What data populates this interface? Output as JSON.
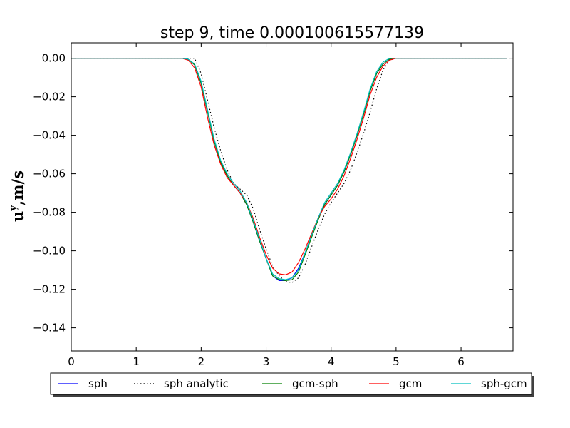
{
  "chart_data": {
    "type": "line",
    "title": "step 9, time 0.000100615577139",
    "xlabel": "",
    "ylabel": {
      "main": "u",
      "sup": "y",
      "rest": ",m/s"
    },
    "xlim": [
      0,
      6.8
    ],
    "ylim": [
      -0.152,
      0.008
    ],
    "xticks": [
      0,
      1,
      2,
      3,
      4,
      5,
      6
    ],
    "xtick_labels": [
      "0",
      "1",
      "2",
      "3",
      "4",
      "5",
      "6"
    ],
    "yticks": [
      0.0,
      -0.02,
      -0.04,
      -0.06,
      -0.08,
      -0.1,
      -0.12,
      -0.14
    ],
    "ytick_labels": [
      "0.00",
      "−0.02",
      "−0.04",
      "−0.06",
      "−0.08",
      "−0.10",
      "−0.12",
      "−0.14"
    ],
    "grid": false,
    "legend_position": "below plot, horizontal",
    "series": [
      {
        "name": "sph",
        "color": "#0000ff",
        "style": "solid",
        "x": [
          0.0,
          1.7,
          1.8,
          1.9,
          2.0,
          2.1,
          2.2,
          2.3,
          2.4,
          2.5,
          2.6,
          2.7,
          2.8,
          2.9,
          3.0,
          3.1,
          3.2,
          3.3,
          3.4,
          3.5,
          3.6,
          3.7,
          3.8,
          3.9,
          4.0,
          4.1,
          4.2,
          4.3,
          4.4,
          4.5,
          4.6,
          4.7,
          4.8,
          4.9,
          5.0,
          6.7
        ],
        "y": [
          0.0,
          0.0,
          -0.0005,
          -0.0035,
          -0.013,
          -0.028,
          -0.043,
          -0.054,
          -0.061,
          -0.066,
          -0.07,
          -0.076,
          -0.085,
          -0.095,
          -0.104,
          -0.113,
          -0.1155,
          -0.1155,
          -0.114,
          -0.109,
          -0.101,
          -0.092,
          -0.083,
          -0.076,
          -0.071,
          -0.066,
          -0.059,
          -0.05,
          -0.04,
          -0.029,
          -0.017,
          -0.008,
          -0.003,
          -0.0005,
          0.0,
          0.0
        ]
      },
      {
        "name": "sph analytic",
        "color": "#000000",
        "style": "dotted",
        "x": [
          0.0,
          1.7,
          1.8,
          1.9,
          2.0,
          2.1,
          2.2,
          2.3,
          2.4,
          2.5,
          2.6,
          2.7,
          2.8,
          2.9,
          3.0,
          3.1,
          3.2,
          3.3,
          3.4,
          3.5,
          3.6,
          3.7,
          3.8,
          3.9,
          4.0,
          4.1,
          4.2,
          4.3,
          4.4,
          4.5,
          4.6,
          4.7,
          4.8,
          4.9,
          5.0,
          6.7
        ],
        "y": [
          0.0,
          0.0,
          0.0,
          0.0,
          -0.008,
          -0.022,
          -0.036,
          -0.048,
          -0.058,
          -0.065,
          -0.068,
          -0.071,
          -0.078,
          -0.089,
          -0.099,
          -0.108,
          -0.113,
          -0.116,
          -0.1165,
          -0.114,
          -0.107,
          -0.098,
          -0.089,
          -0.081,
          -0.075,
          -0.07,
          -0.065,
          -0.058,
          -0.049,
          -0.039,
          -0.028,
          -0.016,
          -0.006,
          -0.001,
          0.0,
          0.0
        ]
      },
      {
        "name": "gcm-sph",
        "color": "#008000",
        "style": "solid",
        "x": [
          0.0,
          1.7,
          1.8,
          1.9,
          2.0,
          2.1,
          2.2,
          2.3,
          2.4,
          2.5,
          2.6,
          2.7,
          2.8,
          2.9,
          3.0,
          3.1,
          3.2,
          3.3,
          3.4,
          3.5,
          3.6,
          3.7,
          3.8,
          3.9,
          4.0,
          4.1,
          4.2,
          4.3,
          4.4,
          4.5,
          4.6,
          4.7,
          4.8,
          4.9,
          5.0,
          6.7
        ],
        "y": [
          0.0,
          0.0,
          -0.0005,
          -0.0035,
          -0.013,
          -0.028,
          -0.043,
          -0.054,
          -0.061,
          -0.066,
          -0.07,
          -0.076,
          -0.085,
          -0.095,
          -0.104,
          -0.113,
          -0.115,
          -0.1155,
          -0.115,
          -0.111,
          -0.102,
          -0.093,
          -0.084,
          -0.076,
          -0.071,
          -0.066,
          -0.059,
          -0.05,
          -0.04,
          -0.029,
          -0.017,
          -0.008,
          -0.003,
          -0.0005,
          0.0,
          0.0
        ]
      },
      {
        "name": "gcm",
        "color": "#ff0000",
        "style": "solid",
        "x": [
          0.0,
          1.7,
          1.8,
          1.9,
          2.0,
          2.1,
          2.2,
          2.3,
          2.4,
          2.5,
          2.6,
          2.7,
          2.8,
          2.9,
          3.0,
          3.1,
          3.2,
          3.3,
          3.4,
          3.5,
          3.6,
          3.7,
          3.8,
          3.9,
          4.0,
          4.1,
          4.2,
          4.3,
          4.4,
          4.5,
          4.6,
          4.7,
          4.8,
          4.9,
          5.0,
          6.7
        ],
        "y": [
          0.0,
          0.0,
          -0.001,
          -0.005,
          -0.015,
          -0.031,
          -0.045,
          -0.055,
          -0.062,
          -0.066,
          -0.07,
          -0.075,
          -0.083,
          -0.093,
          -0.102,
          -0.109,
          -0.112,
          -0.1125,
          -0.111,
          -0.106,
          -0.099,
          -0.091,
          -0.083,
          -0.077,
          -0.073,
          -0.068,
          -0.061,
          -0.052,
          -0.042,
          -0.031,
          -0.019,
          -0.01,
          -0.004,
          -0.001,
          0.0,
          0.0
        ]
      },
      {
        "name": "sph-gcm",
        "color": "#00bfbf",
        "style": "solid",
        "x": [
          0.0,
          1.7,
          1.8,
          1.9,
          2.0,
          2.1,
          2.2,
          2.3,
          2.4,
          2.5,
          2.6,
          2.7,
          2.8,
          2.9,
          3.0,
          3.1,
          3.2,
          3.3,
          3.4,
          3.5,
          3.6,
          3.7,
          3.8,
          3.9,
          4.0,
          4.1,
          4.2,
          4.3,
          4.4,
          4.5,
          4.6,
          4.7,
          4.8,
          4.9,
          5.0,
          6.7
        ],
        "y": [
          0.0,
          0.0,
          -0.0005,
          -0.003,
          -0.012,
          -0.027,
          -0.042,
          -0.053,
          -0.06,
          -0.065,
          -0.069,
          -0.075,
          -0.084,
          -0.094,
          -0.104,
          -0.112,
          -0.1145,
          -0.115,
          -0.114,
          -0.11,
          -0.101,
          -0.092,
          -0.083,
          -0.075,
          -0.07,
          -0.065,
          -0.058,
          -0.049,
          -0.039,
          -0.028,
          -0.016,
          -0.007,
          -0.002,
          0.0,
          0.0,
          0.0
        ]
      }
    ]
  }
}
